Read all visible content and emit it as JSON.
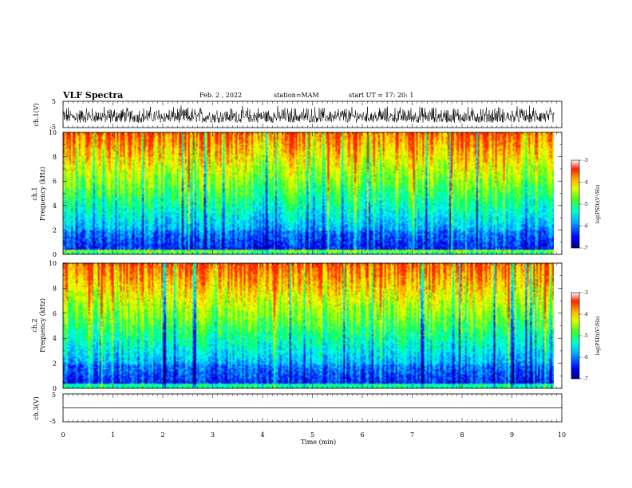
{
  "header": {
    "title": "VLF Spectra",
    "date": "Feb. 2 , 2022",
    "station": "station=MAM",
    "start": "start UT =   17: 20: 1"
  },
  "chart_data": [
    {
      "type": "line",
      "panel": "ch1-waveform",
      "ylabel": "ch.1(V)",
      "yticks": [
        "5",
        "-5"
      ],
      "ylim": [
        -5,
        5
      ],
      "xlim": [
        0,
        10
      ],
      "description_values": {
        "signal_range": [
          -3.5,
          4.0
        ]
      }
    },
    {
      "type": "heatmap",
      "panel": "ch1-spectrogram",
      "ylabel_1": "ch.1",
      "ylabel_2": "Frequency (kHz)",
      "yticks": [
        "0",
        "2",
        "4",
        "6",
        "8",
        "10"
      ],
      "ylim": [
        0,
        10
      ],
      "xlim": [
        0,
        9.85
      ],
      "colorbar": {
        "label": "log(PSD)(V²/Hz)",
        "ticks": [
          "-3",
          "-4",
          "-5",
          "-6",
          "-7"
        ],
        "range": [
          -7,
          -3
        ]
      }
    },
    {
      "type": "heatmap",
      "panel": "ch2-spectrogram",
      "ylabel_1": "ch.2",
      "ylabel_2": "Frequency (kHz)",
      "yticks": [
        "0",
        "2",
        "4",
        "6",
        "8",
        "10"
      ],
      "ylim": [
        0,
        10
      ],
      "xlim": [
        0,
        9.85
      ],
      "colorbar": {
        "label": "log(PSD)(V²/Hz)",
        "ticks": [
          "-3",
          "-4",
          "-5",
          "-6",
          "-7"
        ],
        "range": [
          -7,
          -3
        ]
      }
    },
    {
      "type": "line",
      "panel": "ch3-waveform",
      "ylabel": "ch.3(V)",
      "yticks": [
        "5",
        "-5"
      ],
      "ylim": [
        -5,
        5
      ],
      "xlim": [
        0,
        10
      ],
      "values": [
        0,
        0
      ]
    }
  ],
  "x_axis": {
    "label": "Time (min)",
    "ticks": [
      "0",
      "1",
      "2",
      "3",
      "4",
      "5",
      "6",
      "7",
      "8",
      "9",
      "10"
    ],
    "range": [
      0,
      10
    ]
  },
  "colormap": [
    "#000080",
    "#0000ff",
    "#0090ff",
    "#00ffff",
    "#00ff60",
    "#a0ff00",
    "#ffff00",
    "#ffa000",
    "#ff2000",
    "#ffffff"
  ]
}
